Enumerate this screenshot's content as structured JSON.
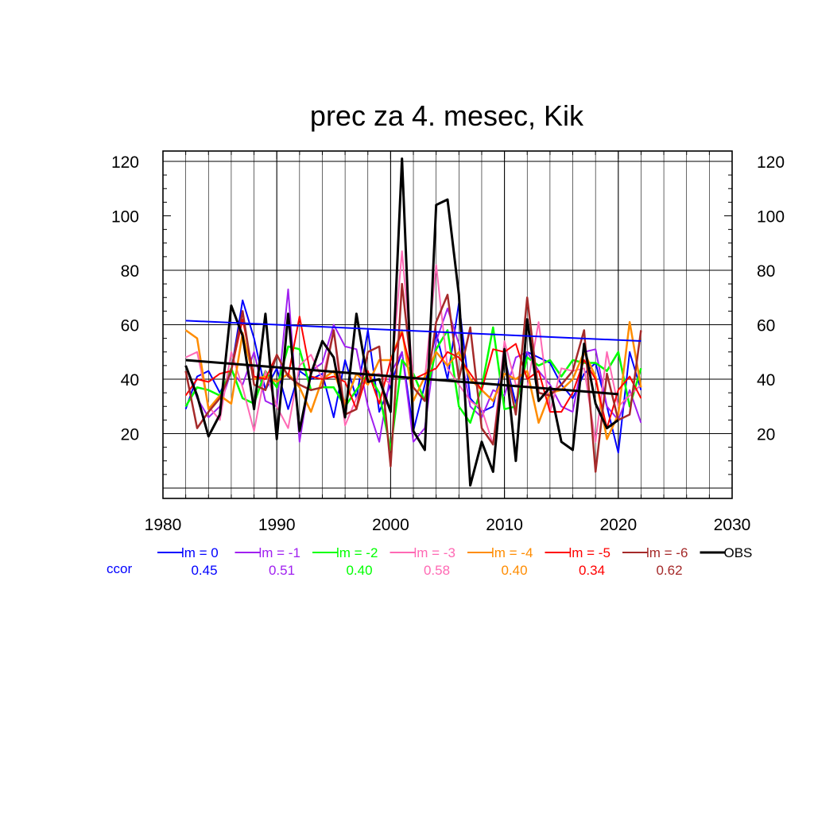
{
  "chart_data": {
    "type": "line",
    "title": "prec za 4. mesec, Kik",
    "xlabel": "",
    "ylabel": "",
    "xlim": [
      1980,
      2030
    ],
    "ylim": [
      0,
      125
    ],
    "x_ticks": [
      "1980",
      "1990",
      "2000",
      "2010",
      "2020",
      "2030"
    ],
    "y_ticks": [
      "20",
      "40",
      "60",
      "80",
      "100",
      "120"
    ],
    "grid": true,
    "legend_position": "bottom",
    "x": [
      1982,
      1983,
      1984,
      1985,
      1986,
      1987,
      1988,
      1989,
      1990,
      1991,
      1992,
      1993,
      1994,
      1995,
      1996,
      1997,
      1998,
      1999,
      2000,
      2001,
      2002,
      2003,
      2004,
      2005,
      2006,
      2007,
      2008,
      2009,
      2010,
      2011,
      2012,
      2013,
      2014,
      2015,
      2016,
      2017,
      2018,
      2019,
      2020,
      2021,
      2022
    ],
    "series": [
      {
        "name": "lm = 0",
        "color": "#0000ff",
        "width": 2,
        "values": [
          29,
          41,
          43,
          35,
          43,
          69,
          55,
          36,
          44,
          29,
          43,
          40,
          42,
          26,
          47,
          33,
          58,
          28,
          38,
          50,
          21,
          38,
          57,
          40,
          68,
          33,
          28,
          30,
          48,
          31,
          50,
          48,
          46,
          38,
          33,
          42,
          46,
          30,
          13,
          50,
          36
        ]
      },
      {
        "name": "lm = -1",
        "color": "#a020f0",
        "width": 2,
        "values": [
          45,
          33,
          26,
          30,
          43,
          38,
          50,
          32,
          30,
          73,
          17,
          43,
          46,
          60,
          52,
          51,
          30,
          17,
          42,
          50,
          17,
          22,
          54,
          66,
          53,
          30,
          26,
          36,
          34,
          48,
          50,
          43,
          38,
          30,
          28,
          50,
          51,
          30,
          25,
          36,
          24
        ]
      },
      {
        "name": "lm = -2",
        "color": "#00ff00",
        "width": 2.5,
        "values": [
          30,
          37,
          36,
          34,
          44,
          33,
          31,
          43,
          37,
          52,
          51,
          36,
          37,
          37,
          30,
          36,
          42,
          35,
          14,
          47,
          42,
          32,
          51,
          58,
          30,
          24,
          37,
          59,
          29,
          30,
          48,
          45,
          47,
          41,
          47,
          46,
          46,
          43,
          50,
          30,
          44
        ]
      },
      {
        "name": "lm = -3",
        "color": "#ff69b4",
        "width": 2,
        "values": [
          48,
          50,
          30,
          25,
          50,
          37,
          21,
          43,
          30,
          22,
          45,
          49,
          40,
          58,
          23,
          33,
          41,
          42,
          38,
          87,
          40,
          40,
          82,
          44,
          38,
          32,
          29,
          16,
          54,
          38,
          37,
          61,
          28,
          44,
          43,
          44,
          17,
          50,
          30,
          34,
          38
        ]
      },
      {
        "name": "lm = -4",
        "color": "#ff8c00",
        "width": 2.5,
        "values": [
          58,
          55,
          29,
          34,
          31,
          57,
          40,
          41,
          39,
          42,
          37,
          28,
          40,
          43,
          31,
          42,
          38,
          47,
          47,
          58,
          32,
          41,
          50,
          45,
          50,
          40,
          36,
          32,
          42,
          40,
          43,
          24,
          35,
          36,
          40,
          50,
          41,
          18,
          27,
          61,
          37
        ]
      },
      {
        "name": "lm = -5",
        "color": "#ff0000",
        "width": 2,
        "values": [
          34,
          40,
          39,
          42,
          43,
          62,
          41,
          40,
          49,
          41,
          63,
          41,
          40,
          41,
          39,
          29,
          43,
          31,
          47,
          57,
          40,
          42,
          44,
          50,
          48,
          42,
          36,
          51,
          50,
          53,
          40,
          43,
          28,
          28,
          35,
          47,
          40,
          22,
          36,
          41,
          33
        ]
      },
      {
        "name": "lm = -6",
        "color": "#a52a2a",
        "width": 2.5,
        "values": [
          43,
          22,
          28,
          33,
          43,
          65,
          38,
          36,
          49,
          41,
          38,
          36,
          37,
          58,
          27,
          29,
          50,
          52,
          8,
          75,
          37,
          32,
          61,
          71,
          40,
          59,
          22,
          16,
          48,
          27,
          70,
          35,
          34,
          38,
          43,
          58,
          6,
          42,
          25,
          27,
          58
        ]
      },
      {
        "name": "OBS",
        "color": "#000000",
        "width": 3,
        "values": [
          45,
          34,
          19,
          27,
          67,
          56,
          29,
          64,
          18,
          64,
          21,
          42,
          54,
          48,
          26,
          64,
          39,
          40,
          28,
          121,
          21,
          14,
          104,
          106,
          71,
          1,
          17,
          6,
          51,
          10,
          62,
          32,
          37,
          17,
          14,
          53,
          31,
          22,
          25,
          null,
          null
        ]
      }
    ],
    "trend_lines": [
      {
        "name": "lm = 0 trend",
        "color": "#0000ff",
        "x": [
          1982,
          2022
        ],
        "y": [
          61.5,
          54
        ]
      },
      {
        "name": "OBS trend",
        "color": "#000000",
        "x": [
          1982,
          2020
        ],
        "y": [
          47,
          34.5
        ]
      }
    ],
    "ccor_label": "ccor",
    "ccor_values": [
      "0.45",
      "0.51",
      "0.40",
      "0.58",
      "0.40",
      "0.34",
      "0.62"
    ]
  }
}
